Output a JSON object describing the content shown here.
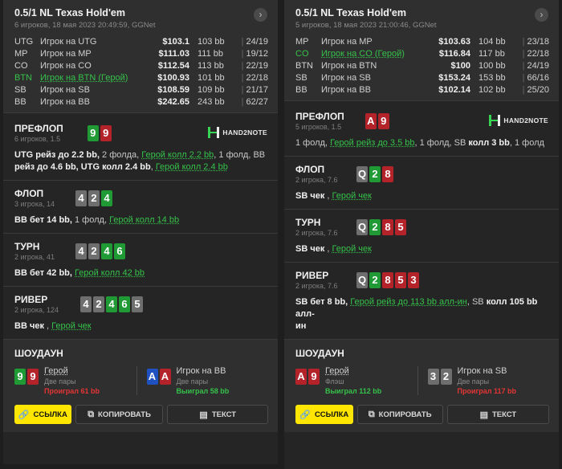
{
  "panels": [
    {
      "title": "0.5/1 NL Texas Hold'em",
      "sub": "6 игроков, 18 мая 2023 20:49:59, GGNet",
      "players": [
        {
          "pos": "UTG",
          "name": "Игрок на UTG",
          "stack": "$103.1",
          "bb": "103 bb",
          "hud": "24/19",
          "hero": false
        },
        {
          "pos": "MP",
          "name": "Игрок на MP",
          "stack": "$111.03",
          "bb": "111 bb",
          "hud": "19/12",
          "hero": false
        },
        {
          "pos": "CO",
          "name": "Игрок на CO",
          "stack": "$112.54",
          "bb": "113 bb",
          "hud": "22/19",
          "hero": false
        },
        {
          "pos": "BTN",
          "name": "Игрок на BTN (Герой)",
          "stack": "$100.93",
          "bb": "101 bb",
          "hud": "22/18",
          "hero": true
        },
        {
          "pos": "SB",
          "name": "Игрок на SB",
          "stack": "$108.59",
          "bb": "109 bb",
          "hud": "21/17",
          "hero": false
        },
        {
          "pos": "BB",
          "name": "Игрок на BB",
          "stack": "$242.65",
          "bb": "243 bb",
          "hud": "62/27",
          "hero": false
        }
      ],
      "preflop": {
        "title": "ПРЕФЛОП",
        "sub": "6 игроков, 1.5",
        "cards": [
          {
            "r": "9",
            "c": "green"
          },
          {
            "r": "9",
            "c": "red"
          }
        ],
        "a1": "UTG рейз до 2.2 bb,",
        "a2": " 2 фолда, ",
        "a3": "Герой колл 2.2 bb",
        "a4": ", 1 фолд, BB",
        "a5": "рейз до 4.6 bb,",
        "a6": " UTG колл 2.4 bb",
        "a7": ", ",
        "a8": "Герой колл 2.4 bb"
      },
      "flop": {
        "title": "ФЛОП",
        "sub": "3 игрока, 14",
        "cards": [
          {
            "r": "4",
            "c": "grey"
          },
          {
            "r": "2",
            "c": "grey"
          },
          {
            "r": "4",
            "c": "green"
          }
        ],
        "a1": "BB бет 14 bb,",
        "a2": " 1 фолд, ",
        "a3": "Герой колл 14 bb"
      },
      "turn": {
        "title": "ТУРН",
        "sub": "2 игрока, 41",
        "cards": [
          {
            "r": "4",
            "c": "grey"
          },
          {
            "r": "2",
            "c": "grey"
          },
          {
            "r": "4",
            "c": "green"
          },
          {
            "r": "6",
            "c": "green"
          }
        ],
        "a1": "BB бет 42 bb,",
        "a2": " ",
        "a3": "Герой колл 42 bb"
      },
      "river": {
        "title": "РИВЕР",
        "sub": "2 игрока, 124",
        "cards": [
          {
            "r": "4",
            "c": "grey"
          },
          {
            "r": "2",
            "c": "grey"
          },
          {
            "r": "4",
            "c": "green"
          },
          {
            "r": "6",
            "c": "green"
          },
          {
            "r": "5",
            "c": "grey"
          }
        ],
        "a1": "BB чек",
        "a2": " , ",
        "a3": "Герой чек"
      },
      "showdown": {
        "title": "ШОУДАУН",
        "left": {
          "cards": [
            {
              "r": "9",
              "c": "green"
            },
            {
              "r": "9",
              "c": "red"
            }
          ],
          "name": "Герой",
          "hand": "Две пары",
          "result": "Проиграл 61 bb",
          "win": false,
          "hero": true
        },
        "right": {
          "cards": [
            {
              "r": "A",
              "c": "blue"
            },
            {
              "r": "A",
              "c": "red"
            }
          ],
          "name": "Игрок на BB",
          "hand": "Две пары",
          "result": "Выиграл 58 bb",
          "win": true,
          "hero": false
        }
      }
    },
    {
      "title": "0.5/1 NL Texas Hold'em",
      "sub": "5 игроков, 18 мая 2023 21:00:46, GGNet",
      "players": [
        {
          "pos": "MP",
          "name": "Игрок на MP",
          "stack": "$103.63",
          "bb": "104 bb",
          "hud": "23/18",
          "hero": false
        },
        {
          "pos": "CO",
          "name": "Игрок на CO (Герой)",
          "stack": "$116.84",
          "bb": "117 bb",
          "hud": "22/18",
          "hero": true
        },
        {
          "pos": "BTN",
          "name": "Игрок на BTN",
          "stack": "$100",
          "bb": "100 bb",
          "hud": "24/19",
          "hero": false
        },
        {
          "pos": "SB",
          "name": "Игрок на SB",
          "stack": "$153.24",
          "bb": "153 bb",
          "hud": "66/16",
          "hero": false
        },
        {
          "pos": "BB",
          "name": "Игрок на BB",
          "stack": "$102.14",
          "bb": "102 bb",
          "hud": "25/20",
          "hero": false
        }
      ],
      "preflop": {
        "title": "ПРЕФЛОП",
        "sub": "5 игроков, 1.5",
        "cards": [
          {
            "r": "A",
            "c": "red"
          },
          {
            "r": "9",
            "c": "red"
          }
        ],
        "a1": "1 фолд, ",
        "a2": "Герой рейз до 3.5 bb",
        "a3": ", 1 фолд, SB ",
        "a4": "колл 3 bb",
        "a5": ", 1 фолд"
      },
      "flop": {
        "title": "ФЛОП",
        "sub": "2 игрока, 7.6",
        "cards": [
          {
            "r": "Q",
            "c": "grey"
          },
          {
            "r": "2",
            "c": "green"
          },
          {
            "r": "8",
            "c": "red"
          }
        ],
        "a1": "SB чек",
        "a2": " , ",
        "a3": "Герой чек"
      },
      "turn": {
        "title": "ТУРН",
        "sub": "2 игрока, 7.6",
        "cards": [
          {
            "r": "Q",
            "c": "grey"
          },
          {
            "r": "2",
            "c": "green"
          },
          {
            "r": "8",
            "c": "red"
          },
          {
            "r": "5",
            "c": "red"
          }
        ],
        "a1": "SB чек",
        "a2": " , ",
        "a3": "Герой чек"
      },
      "river": {
        "title": "РИВЕР",
        "sub": "2 игрока, 7.6",
        "cards": [
          {
            "r": "Q",
            "c": "grey"
          },
          {
            "r": "2",
            "c": "green"
          },
          {
            "r": "8",
            "c": "red"
          },
          {
            "r": "5",
            "c": "red"
          },
          {
            "r": "3",
            "c": "red"
          }
        ],
        "a1": "SB бет 8 bb,",
        "a2": " ",
        "a3": "Герой рейз до 113 bb алл-ин",
        "a4": ", SB ",
        "a5": "колл 105 bb алл-",
        "a6": "ин"
      },
      "showdown": {
        "title": "ШОУДАУН",
        "left": {
          "cards": [
            {
              "r": "A",
              "c": "red"
            },
            {
              "r": "9",
              "c": "red"
            }
          ],
          "name": "Герой",
          "hand": "Флэш",
          "result": "Выиграл 112 bb",
          "win": true,
          "hero": true
        },
        "right": {
          "cards": [
            {
              "r": "3",
              "c": "grey"
            },
            {
              "r": "2",
              "c": "grey"
            }
          ],
          "name": "Игрок на SB",
          "hand": "Две пары",
          "result": "Проиграл 117 bb",
          "win": false,
          "hero": false
        }
      }
    }
  ],
  "brand": "HAND2NOTE",
  "buttons": {
    "link": "ССЫЛКА",
    "copy": "КОПИРОВАТЬ",
    "text": "ТЕКСТ"
  },
  "colors": {
    "hero": "#35c24a",
    "lose": "#e53535",
    "accent": "#ffe600",
    "card_green": "#1f9a34",
    "card_red": "#b5232a",
    "card_grey": "#6e6e6e",
    "card_blue": "#1f52c0"
  }
}
